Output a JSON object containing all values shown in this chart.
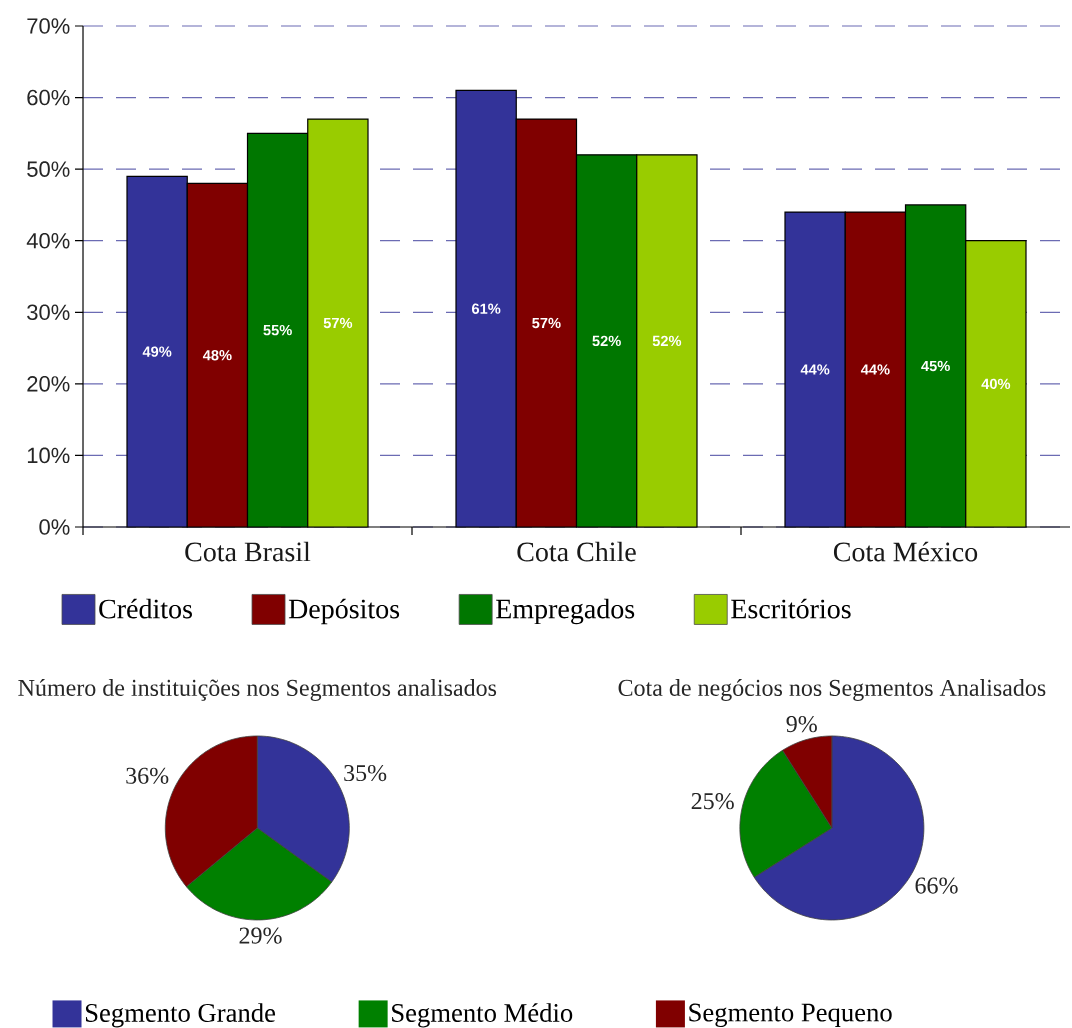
{
  "chart_data": [
    {
      "type": "bar",
      "categories": [
        "Cota Brasil",
        "Cota Chile",
        "Cota México"
      ],
      "series": [
        {
          "name": "Créditos",
          "color": "#333399",
          "values": [
            49,
            61,
            44
          ],
          "value_labels": [
            "49%",
            "61%",
            "44%"
          ]
        },
        {
          "name": "Depósitos",
          "color": "#800000",
          "values": [
            48,
            57,
            44
          ],
          "value_labels": [
            "48%",
            "57%",
            "44%"
          ]
        },
        {
          "name": "Empregados",
          "color": "#007700",
          "values": [
            55,
            52,
            45
          ],
          "value_labels": [
            "55%",
            "52%",
            "45%"
          ]
        },
        {
          "name": "Escritórios",
          "color": "#99cc00",
          "values": [
            57,
            52,
            40
          ],
          "value_labels": [
            "57%",
            "52%",
            "40%"
          ]
        }
      ],
      "ylim": [
        0,
        70
      ],
      "yticks": [
        {
          "value": 0,
          "label": "0%"
        },
        {
          "value": 10,
          "label": "10%"
        },
        {
          "value": 20,
          "label": "20%"
        },
        {
          "value": 30,
          "label": "30%"
        },
        {
          "value": 40,
          "label": "40%"
        },
        {
          "value": 50,
          "label": "50%"
        },
        {
          "value": 60,
          "label": "60%"
        },
        {
          "value": 70,
          "label": "70%"
        }
      ],
      "grid": "y",
      "legend": "bottom"
    },
    {
      "type": "pie",
      "categories": [
        "Segmento Grande",
        "Segmento Médio",
        "Segmento Pequeno"
      ],
      "colors": [
        "#333399",
        "#008000",
        "#800000"
      ],
      "series": [
        {
          "name": "Número de instituições nos Segmentos analisados",
          "values": [
            35,
            29,
            36
          ],
          "value_labels": [
            "35%",
            "29%",
            "36%"
          ]
        },
        {
          "name": "Cota de negócios nos Segmentos Analisados",
          "values": [
            66,
            25,
            9
          ],
          "value_labels": [
            "66%",
            "25%",
            "9%"
          ]
        }
      ],
      "legend": "bottom"
    }
  ]
}
